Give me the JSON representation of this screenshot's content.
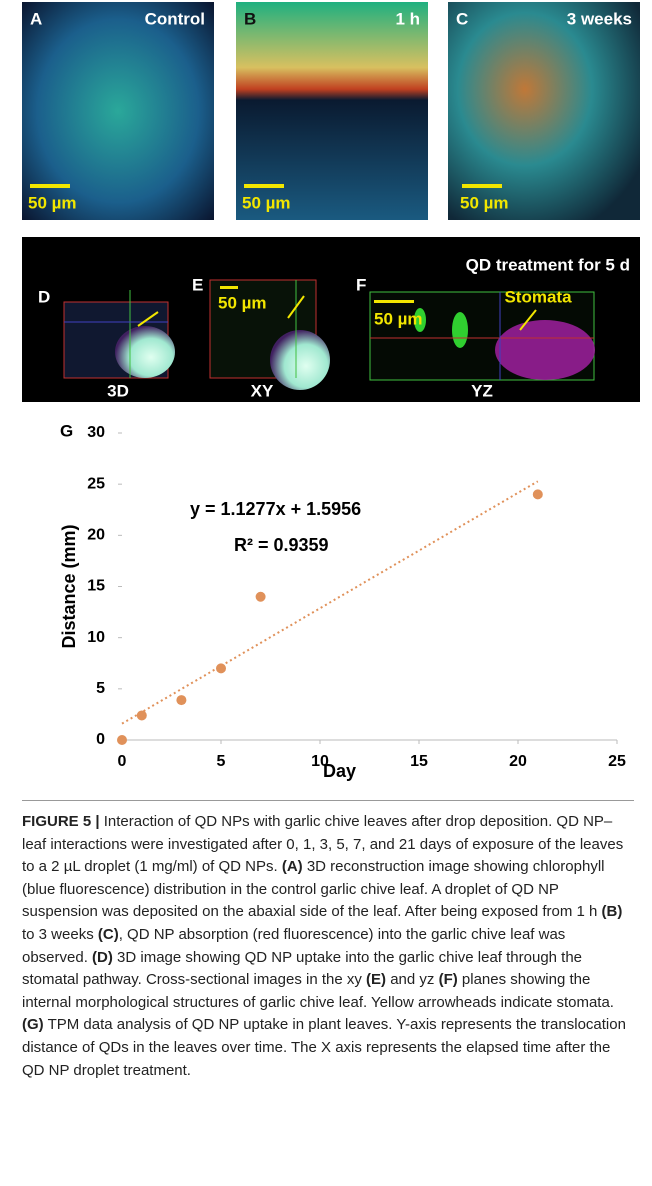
{
  "panels": {
    "a": {
      "letter": "A",
      "label": "Control",
      "scale": "50 µm"
    },
    "b": {
      "letter": "B",
      "label": "1 h",
      "scale": "50 µm"
    },
    "c": {
      "letter": "C",
      "label": "3 weeks",
      "scale": "50 µm"
    },
    "title": "QD treatment for 5 d",
    "d": {
      "letter": "D",
      "view": "3D"
    },
    "e": {
      "letter": "E",
      "scale": "50 µm",
      "view": "XY"
    },
    "f": {
      "letter": "F",
      "scale": "50 µm",
      "annotation": "Stomata",
      "view": "YZ"
    }
  },
  "chart_data": {
    "type": "scatter",
    "panel_letter": "G",
    "x": [
      0,
      1,
      3,
      5,
      7,
      21
    ],
    "values": [
      0,
      2.4,
      3.9,
      7,
      14,
      24
    ],
    "color": "#e0915a",
    "xlim": [
      0,
      25
    ],
    "ylim": [
      0,
      30
    ],
    "xticks": [
      0,
      5,
      10,
      15,
      20,
      25
    ],
    "yticks": [
      0,
      5,
      10,
      15,
      20,
      25,
      30
    ],
    "x_label": "Day",
    "y_label": "Distance (mm)",
    "trendline": true,
    "equation": "y = 1.1277x + 1.5956",
    "r_squared": "R² = 0.9359"
  },
  "caption": {
    "parts": [
      "FIGURE 5 |",
      " Interaction of QD NPs with garlic chive leaves after drop deposition. QD NP–leaf interactions were investigated after 0, 1, 3, 5, 7, and 21 days of exposure of the leaves to a 2 µL droplet (1 mg/ml) of QD NPs. ",
      "(A)",
      " 3D reconstruction image showing chlorophyll (blue fluorescence) distribution in the control garlic chive leaf. A droplet of QD NP suspension was deposited on the abaxial side of the leaf. After being exposed from 1 h ",
      "(B)",
      " to 3 weeks ",
      "(C)",
      ", QD NP absorption (red fluorescence) into the garlic chive leaf was observed. ",
      "(D)",
      " 3D image showing QD NP uptake into the garlic chive leaf through the stomatal pathway. Cross-sectional images in the xy ",
      "(E)",
      " and yz ",
      "(F)",
      " planes showing the internal morphological structures of garlic chive leaf. Yellow arrowheads indicate stomata. ",
      "(G)",
      " TPM data analysis of QD NP uptake in plant leaves. Y-axis represents the translocation distance of QDs in the leaves over time. The X axis represents the elapsed time after the QD NP droplet treatment."
    ]
  }
}
